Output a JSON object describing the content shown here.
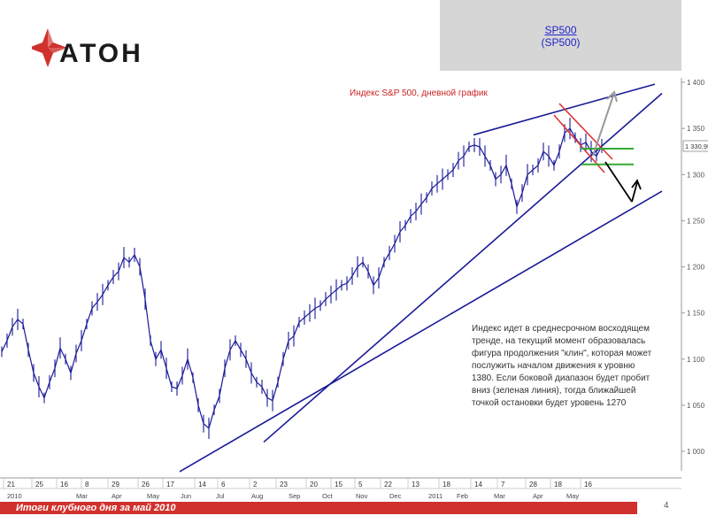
{
  "brand": {
    "logo_text": "АТОН",
    "logo_color": "#d0312d"
  },
  "ticker": {
    "symbol": "SP500",
    "symbol_paren": "(SP500)"
  },
  "chart_data": {
    "type": "line",
    "title": "Индекс S&P 500, дневной график",
    "y_ticks": [
      "1 000",
      "1 050",
      "1 100",
      "1 150",
      "1 200",
      "1 250",
      "1 300",
      "1 350",
      "1 400"
    ],
    "y_tick_values": [
      1000,
      1050,
      1100,
      1150,
      1200,
      1250,
      1300,
      1350,
      1400
    ],
    "ylim": [
      990,
      1405
    ],
    "current_value_label": "1 330,95",
    "current_value": 1330.95,
    "x_day_ticks": [
      "21",
      "25",
      "16",
      "8",
      "29",
      "26",
      "17",
      "14",
      "6",
      "2",
      "23",
      "20",
      "15",
      "5",
      "22",
      "13",
      "18",
      "14",
      "7",
      "28",
      "18",
      "16"
    ],
    "x_month_labels": [
      "2010",
      "Mar",
      "Apr",
      "May",
      "Jun",
      "Jul",
      "Aug",
      "Sep",
      "Oct",
      "Nov",
      "Dec",
      "2011",
      "Feb",
      "Mar",
      "Apr",
      "May"
    ],
    "x": [
      0,
      6,
      12,
      18,
      24,
      30,
      36,
      42,
      48,
      54,
      60,
      66,
      72,
      78,
      84,
      90,
      96,
      102,
      108,
      114,
      120,
      126,
      132,
      138,
      144,
      150,
      156,
      162,
      168,
      174,
      180,
      186,
      192,
      198,
      204,
      210,
      216,
      222,
      228,
      234,
      240,
      246,
      252,
      258,
      264,
      270,
      276,
      282,
      288,
      294,
      300,
      306,
      312,
      318,
      324,
      330,
      336,
      342,
      348,
      354,
      360,
      366,
      372,
      378,
      384,
      390,
      396,
      402,
      408,
      414,
      420,
      426,
      432,
      438,
      444,
      450,
      456,
      462,
      468,
      474,
      480,
      486,
      492,
      498,
      504,
      510,
      516,
      522,
      528,
      534,
      540,
      546,
      552,
      558,
      564,
      570,
      576,
      582,
      588,
      594,
      600,
      606,
      612,
      618,
      624,
      630,
      636,
      642,
      648,
      654,
      660,
      666,
      672,
      678
    ],
    "series": [
      {
        "values": [
          1108,
          1120,
          1135,
          1143,
          1138,
          1110,
          1085,
          1070,
          1058,
          1075,
          1090,
          1112,
          1100,
          1085,
          1106,
          1120,
          1138,
          1155,
          1162,
          1170,
          1180,
          1189,
          1195,
          1210,
          1205,
          1213,
          1200,
          1165,
          1120,
          1100,
          1110,
          1090,
          1070,
          1068,
          1082,
          1100,
          1080,
          1050,
          1030,
          1025,
          1045,
          1060,
          1090,
          1110,
          1120,
          1110,
          1100,
          1085,
          1075,
          1070,
          1058,
          1055,
          1075,
          1100,
          1120,
          1125,
          1140,
          1145,
          1150,
          1155,
          1158,
          1165,
          1170,
          1175,
          1180,
          1182,
          1190,
          1200,
          1205,
          1195,
          1180,
          1188,
          1205,
          1215,
          1225,
          1238,
          1245,
          1255,
          1260,
          1268,
          1275,
          1285,
          1290,
          1295,
          1300,
          1305,
          1315,
          1320,
          1330,
          1332,
          1330,
          1320,
          1310,
          1295,
          1300,
          1310,
          1290,
          1265,
          1280,
          1300,
          1305,
          1310,
          1325,
          1320,
          1310,
          1325,
          1345,
          1350,
          1340,
          1332,
          1335,
          1325,
          1320,
          1331
        ]
      }
    ],
    "trend_lines": [
      {
        "name": "upper-channel",
        "from": [
          535,
          1343
        ],
        "to": [
          740,
          1398
        ]
      },
      {
        "name": "mid-support",
        "from": [
          298,
          1010
        ],
        "to": [
          748,
          1388
        ]
      },
      {
        "name": "long-support",
        "from": [
          203,
          978
        ],
        "to": [
          748,
          1282
        ]
      }
    ],
    "support_resistance": [
      {
        "name": "green-upper",
        "value": 1328
      },
      {
        "name": "green-lower",
        "value": 1311
      }
    ],
    "arrows": [
      {
        "name": "upside-target",
        "value": 1380,
        "color": "#999999"
      },
      {
        "name": "downside-target",
        "value": 1270,
        "color": "#000000"
      }
    ],
    "annotation_text": "Индекс идет в среднесрочном восходящем тренде, на текущий момент образовалась фигура продолжения \"клин\", которая может послужить началом движения к уровню 1380. Если боковой диапазон будет пробит вниз (зеленая линия), тогда ближайшей точкой остановки будет уровень 1270",
    "colors": {
      "price": "#1a1a99",
      "trend": "#1a1a99",
      "wedge": "#dd3333",
      "support": "#33aa33"
    }
  },
  "footer": {
    "title": "Итоги клубного дня за май 2010",
    "page": "4"
  }
}
